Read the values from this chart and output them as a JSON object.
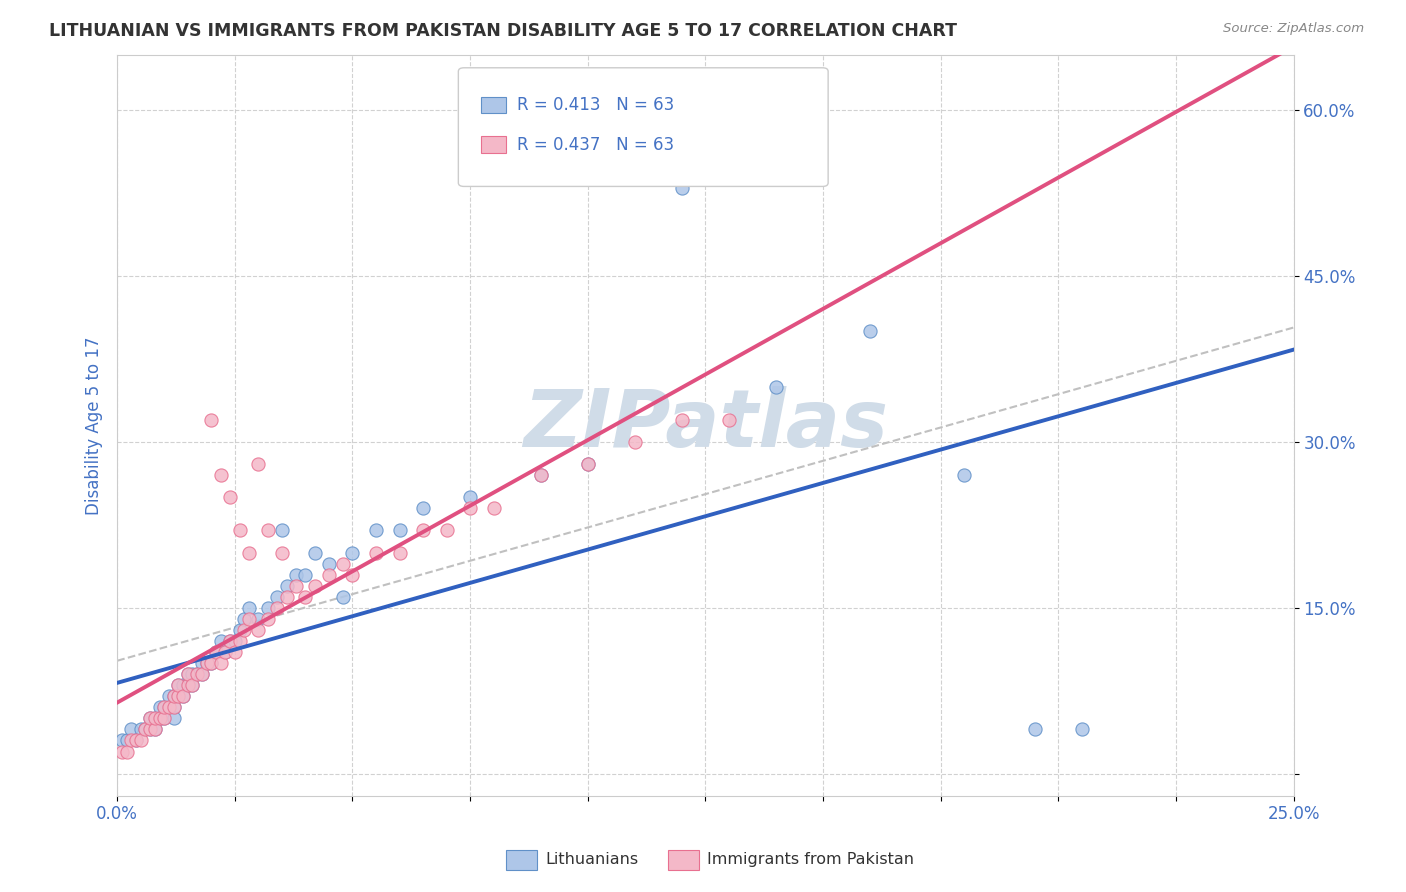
{
  "title": "LITHUANIAN VS IMMIGRANTS FROM PAKISTAN DISABILITY AGE 5 TO 17 CORRELATION CHART",
  "source_text": "Source: ZipAtlas.com",
  "ylabel": "Disability Age 5 to 17",
  "xlim": [
    0.0,
    0.25
  ],
  "ylim": [
    -0.02,
    0.65
  ],
  "background_color": "#ffffff",
  "grid_color": "#cccccc",
  "title_color": "#333333",
  "tick_label_color": "#4472c4",
  "watermark_text": "ZIPatlas",
  "watermark_color": "#d0dce8",
  "legend_R1": "R = 0.413",
  "legend_N1": "N = 63",
  "legend_R2": "R = 0.437",
  "legend_N2": "N = 63",
  "legend_color1": "#aec6e8",
  "legend_color2": "#f4b8c8",
  "scatter_color1": "#aec6e8",
  "scatter_color2": "#f4b8c8",
  "scatter_edge1": "#6090c8",
  "scatter_edge2": "#e87090",
  "line_color1": "#3060c0",
  "line_color2": "#e05080",
  "line_dash_color": "#c0c0c0",
  "lithuanians_x": [
    0.001,
    0.002,
    0.003,
    0.004,
    0.005,
    0.006,
    0.007,
    0.007,
    0.008,
    0.008,
    0.009,
    0.009,
    0.01,
    0.01,
    0.011,
    0.011,
    0.012,
    0.012,
    0.012,
    0.013,
    0.013,
    0.014,
    0.014,
    0.015,
    0.015,
    0.016,
    0.016,
    0.017,
    0.018,
    0.018,
    0.019,
    0.02,
    0.021,
    0.022,
    0.023,
    0.024,
    0.025,
    0.026,
    0.027,
    0.028,
    0.03,
    0.032,
    0.034,
    0.036,
    0.038,
    0.04,
    0.045,
    0.05,
    0.055,
    0.06,
    0.065,
    0.075,
    0.09,
    0.1,
    0.12,
    0.14,
    0.16,
    0.18,
    0.195,
    0.205,
    0.035,
    0.042,
    0.048
  ],
  "lithuanians_y": [
    0.03,
    0.03,
    0.04,
    0.03,
    0.04,
    0.04,
    0.05,
    0.04,
    0.05,
    0.04,
    0.05,
    0.06,
    0.05,
    0.06,
    0.06,
    0.07,
    0.06,
    0.07,
    0.05,
    0.07,
    0.08,
    0.07,
    0.08,
    0.08,
    0.09,
    0.08,
    0.09,
    0.09,
    0.1,
    0.09,
    0.1,
    0.1,
    0.11,
    0.12,
    0.11,
    0.12,
    0.12,
    0.13,
    0.14,
    0.15,
    0.14,
    0.15,
    0.16,
    0.17,
    0.18,
    0.18,
    0.19,
    0.2,
    0.22,
    0.22,
    0.24,
    0.25,
    0.27,
    0.28,
    0.53,
    0.35,
    0.4,
    0.27,
    0.04,
    0.04,
    0.22,
    0.2,
    0.16
  ],
  "pakistan_x": [
    0.001,
    0.002,
    0.003,
    0.004,
    0.005,
    0.006,
    0.007,
    0.007,
    0.008,
    0.008,
    0.009,
    0.01,
    0.01,
    0.011,
    0.012,
    0.012,
    0.013,
    0.013,
    0.014,
    0.015,
    0.015,
    0.016,
    0.017,
    0.018,
    0.019,
    0.02,
    0.021,
    0.022,
    0.023,
    0.024,
    0.025,
    0.026,
    0.027,
    0.028,
    0.03,
    0.032,
    0.034,
    0.036,
    0.038,
    0.04,
    0.042,
    0.045,
    0.048,
    0.05,
    0.055,
    0.06,
    0.065,
    0.07,
    0.075,
    0.08,
    0.09,
    0.1,
    0.11,
    0.12,
    0.13,
    0.02,
    0.022,
    0.024,
    0.026,
    0.028,
    0.03,
    0.032,
    0.035
  ],
  "pakistan_y": [
    0.02,
    0.02,
    0.03,
    0.03,
    0.03,
    0.04,
    0.04,
    0.05,
    0.04,
    0.05,
    0.05,
    0.05,
    0.06,
    0.06,
    0.06,
    0.07,
    0.07,
    0.08,
    0.07,
    0.08,
    0.09,
    0.08,
    0.09,
    0.09,
    0.1,
    0.1,
    0.11,
    0.1,
    0.11,
    0.12,
    0.11,
    0.12,
    0.13,
    0.14,
    0.13,
    0.14,
    0.15,
    0.16,
    0.17,
    0.16,
    0.17,
    0.18,
    0.19,
    0.18,
    0.2,
    0.2,
    0.22,
    0.22,
    0.24,
    0.24,
    0.27,
    0.28,
    0.3,
    0.32,
    0.32,
    0.32,
    0.27,
    0.25,
    0.22,
    0.2,
    0.28,
    0.22,
    0.2
  ]
}
